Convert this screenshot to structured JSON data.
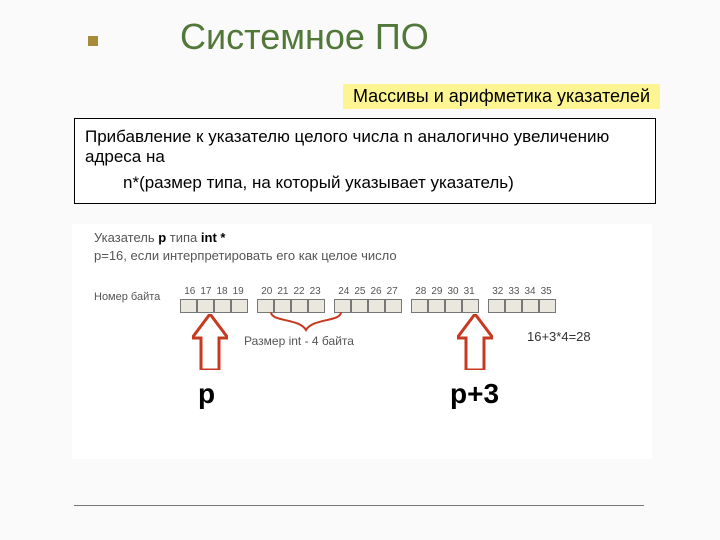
{
  "title": "Системное ПО",
  "subtitle": "Массивы и арифметика указателей",
  "explanation": {
    "line1": "Прибавление к указателю целого числа n аналогично увеличению адреса на",
    "formula": "n*(размер типа, на который указывает указатель)"
  },
  "diagram": {
    "heading_prefix": "Указатель ",
    "heading_ptr": "p",
    "heading_mid": " типа ",
    "heading_type": "int *",
    "subheading": "p=16, если интерпретировать его как целое число",
    "byte_label": "Номер байта",
    "byte_groups": [
      [
        "16",
        "17",
        "18",
        "19"
      ],
      [
        "20",
        "21",
        "22",
        "23"
      ],
      [
        "24",
        "25",
        "26",
        "27"
      ],
      [
        "28",
        "29",
        "30",
        "31"
      ],
      [
        "32",
        "33",
        "34",
        "35"
      ]
    ],
    "size_label": "Размер int - 4 байта",
    "arrow_color": "#c63a22",
    "p_label": "p",
    "p3_label": "p+3",
    "calc": "16+3*4=28",
    "cell_bg": "#e9e7de",
    "cell_border": "#777"
  }
}
